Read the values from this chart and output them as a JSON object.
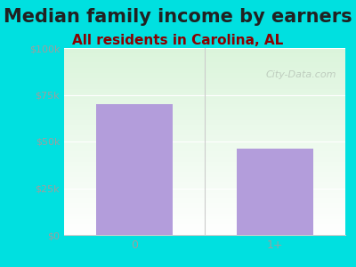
{
  "title": "Median family income by earners",
  "subtitle": "All residents in Carolina, AL",
  "categories": [
    "0",
    "1+"
  ],
  "values": [
    70000,
    46000
  ],
  "bar_color": "#b39ddb",
  "bg_outer": "#00e0e0",
  "yticks": [
    0,
    25000,
    50000,
    75000,
    100000
  ],
  "ytick_labels": [
    "$0",
    "$25k",
    "$50k",
    "$75k",
    "$100k"
  ],
  "ylim": [
    0,
    100000
  ],
  "title_fontsize": 15,
  "subtitle_fontsize": 11,
  "tick_color": "#9e9e9e",
  "watermark": "City-Data.com"
}
